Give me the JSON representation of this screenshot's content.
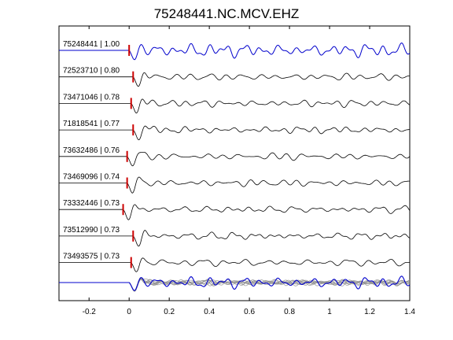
{
  "chart_data": {
    "type": "line",
    "title": "75248441.NC.MCV.EHZ",
    "xlabel": "",
    "ylabel": "",
    "xlim": [
      -0.35,
      1.4
    ],
    "x_ticks": [
      -0.2,
      0,
      0.2,
      0.4,
      0.6,
      0.8,
      1,
      1.2,
      1.4
    ],
    "x_tick_labels": [
      "-0.2",
      "0",
      "0.2",
      "0.4",
      "0.6",
      "0.8",
      "1",
      "1.2",
      "1.4"
    ],
    "grid": false,
    "legend": "none",
    "series": [
      {
        "name": "75248441 | 1.00",
        "pick_time": 0.0,
        "color": "#0000cc"
      },
      {
        "name": "72523710 | 0.80",
        "pick_time": 0.02,
        "color": "#000000"
      },
      {
        "name": "73471046 | 0.78",
        "pick_time": 0.01,
        "color": "#000000"
      },
      {
        "name": "71818541 | 0.77",
        "pick_time": 0.02,
        "color": "#000000"
      },
      {
        "name": "73632486 | 0.76",
        "pick_time": -0.01,
        "color": "#000000"
      },
      {
        "name": "73469096 | 0.74",
        "pick_time": -0.01,
        "color": "#000000"
      },
      {
        "name": "73332446 | 0.73",
        "pick_time": -0.03,
        "color": "#000000"
      },
      {
        "name": "73512990 | 0.73",
        "pick_time": 0.02,
        "color": "#000000"
      },
      {
        "name": "73493575 | 0.73",
        "pick_time": 0.01,
        "color": "#000000"
      }
    ],
    "stack_colors": {
      "master": "#0000cc",
      "others": "#8c8c8c"
    },
    "pick_marker_color": "#cc0000"
  }
}
